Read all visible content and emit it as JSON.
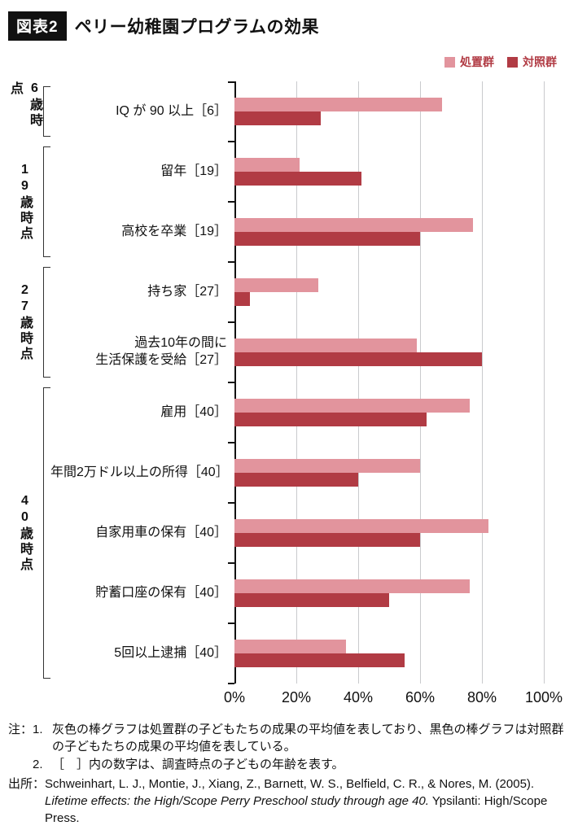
{
  "header": {
    "badge": "図表2",
    "title": "ペリー幼稚園プログラムの効果"
  },
  "legend": {
    "treatment": "処置群",
    "control": "対照群"
  },
  "colors": {
    "treatment": "#e2949d",
    "control": "#b13b44",
    "grid": "#c9cacd",
    "axis": "#111111"
  },
  "chart_data": {
    "type": "bar",
    "orientation": "horizontal",
    "title": "ペリー幼稚園プログラムの効果",
    "unit": "%",
    "xlim": [
      0,
      100
    ],
    "x_ticks": [
      "0%",
      "20%",
      "40%",
      "60%",
      "80%",
      "100%"
    ],
    "grid": true,
    "legend_position": "top-right",
    "categories": [
      "IQ が 90 以上［6］",
      "留年［19］",
      "高校を卒業［19］",
      "持ち家［27］",
      "過去10年の間に生活保護を受給［27］",
      "雇用［40］",
      "年間2万ドル以上の所得［40］",
      "自家用車の保有［40］",
      "貯蓄口座の保有［40］",
      "5回以上逮捕［40］"
    ],
    "series": [
      {
        "name": "処置群",
        "values": [
          67,
          21,
          77,
          27,
          59,
          76,
          60,
          82,
          76,
          36
        ]
      },
      {
        "name": "対照群",
        "values": [
          28,
          41,
          60,
          5,
          80,
          62,
          40,
          60,
          50,
          55
        ]
      }
    ],
    "groups": [
      {
        "age_label": "6歳時点",
        "rows": [
          {
            "label": "IQ が 90 以上［6］",
            "treatment": 67,
            "control": 28
          }
        ]
      },
      {
        "age_label": "19歳時点",
        "rows": [
          {
            "label": "留年［19］",
            "treatment": 21,
            "control": 41
          },
          {
            "label": "高校を卒業［19］",
            "treatment": 77,
            "control": 60
          }
        ]
      },
      {
        "age_label": "27歳時点",
        "rows": [
          {
            "label": "持ち家［27］",
            "treatment": 27,
            "control": 5
          },
          {
            "label": "過去10年の間に\n生活保護を受給［27］",
            "treatment": 59,
            "control": 80
          }
        ]
      },
      {
        "age_label": "40歳時点",
        "rows": [
          {
            "label": "雇用［40］",
            "treatment": 76,
            "control": 62
          },
          {
            "label": "年間2万ドル以上の所得［40］",
            "treatment": 60,
            "control": 40
          },
          {
            "label": "自家用車の保有［40］",
            "treatment": 82,
            "control": 60
          },
          {
            "label": "貯蓄口座の保有［40］",
            "treatment": 76,
            "control": 50
          },
          {
            "label": "5回以上逮捕［40］",
            "treatment": 36,
            "control": 55
          }
        ]
      }
    ]
  },
  "notes": {
    "label": "注：",
    "items": [
      {
        "num": "1.",
        "text": "灰色の棒グラフは処置群の子どもたちの成果の平均値を表しており、黒色の棒グラフは対照群の子どもたちの成果の平均値を表している。"
      },
      {
        "num": "2.",
        "text": "［　］内の数字は、調査時点の子どもの年齢を表す。"
      }
    ],
    "source_label": "出所：",
    "source_prefix": "Schweinhart, L. J., Montie, J., Xiang, Z., Barnett, W. S., Belfield, C. R., & Nores, M. (2005). ",
    "source_title": "Lifetime effects: the High/Scope Perry Preschool study through age 40.",
    "source_suffix": " Ypsilanti: High/Scope Press."
  }
}
